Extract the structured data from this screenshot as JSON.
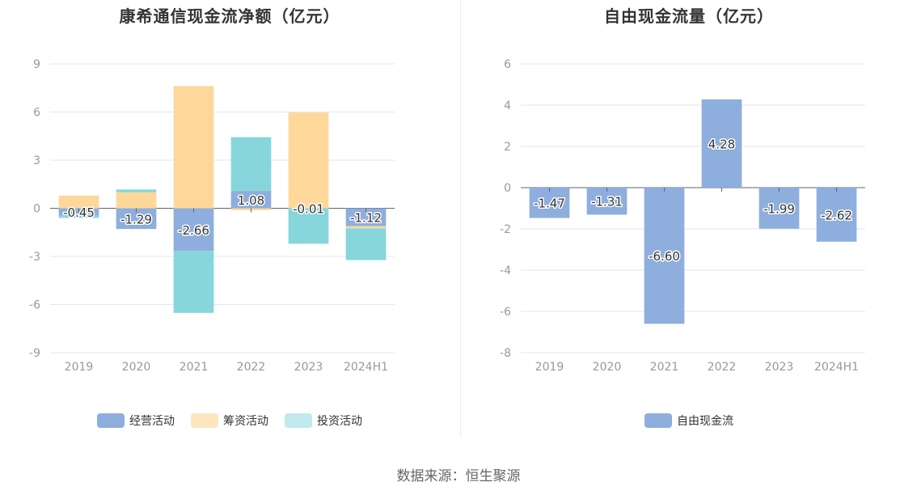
{
  "colors": {
    "operating": "#8eaedd",
    "financing": "#fdd89a",
    "investing": "#86d6dc",
    "free_cash_flow": "#8eaedd"
  },
  "legend_swatch_colors": {
    "operating": "#8eaedd",
    "financing": "#fde5c0",
    "investing": "#c2e9ec",
    "free_cash_flow": "#8eaedd"
  },
  "footer": "数据来源：恒生聚源",
  "chart_data": [
    {
      "type": "bar",
      "stacked": true,
      "title": "康希通信现金流净额（亿元）",
      "categories": [
        "2019",
        "2020",
        "2021",
        "2022",
        "2023",
        "2024H1"
      ],
      "ylim": [
        -9,
        9
      ],
      "yticks": [
        "9",
        "6",
        "3",
        "0",
        "-3",
        "-6",
        "-9"
      ],
      "ytick_values": [
        9,
        6,
        3,
        0,
        -3,
        -6,
        -9
      ],
      "legend_position": "bottom",
      "series": [
        {
          "key": "operating",
          "name": "经营活动",
          "values": [
            -0.45,
            -1.29,
            -2.66,
            1.08,
            -0.01,
            -1.12
          ],
          "labels": [
            "-0.45",
            "-1.29",
            "-2.66",
            "1.08",
            "-0.01",
            "-1.12"
          ]
        },
        {
          "key": "financing",
          "name": "筹资活动",
          "values": [
            0.79,
            1.0,
            7.62,
            -0.12,
            5.97,
            -0.13
          ]
        },
        {
          "key": "investing",
          "name": "投资活动",
          "values": [
            -0.15,
            0.17,
            -3.86,
            3.35,
            -2.2,
            -1.98
          ]
        }
      ]
    },
    {
      "type": "bar",
      "title": "自由现金流量（亿元）",
      "categories": [
        "2019",
        "2020",
        "2021",
        "2022",
        "2023",
        "2024H1"
      ],
      "ylim": [
        -8,
        6
      ],
      "yticks": [
        "6",
        "4",
        "2",
        "0",
        "-2",
        "-4",
        "-6",
        "-8"
      ],
      "ytick_values": [
        6,
        4,
        2,
        0,
        -2,
        -4,
        -6,
        -8
      ],
      "legend_position": "bottom",
      "series": [
        {
          "key": "free_cash_flow",
          "name": "自由现金流",
          "values": [
            -1.47,
            -1.31,
            -6.6,
            4.28,
            -1.99,
            -2.62
          ],
          "labels": [
            "-1.47",
            "-1.31",
            "-6.60",
            "4.28",
            "-1.99",
            "-2.62"
          ]
        }
      ]
    }
  ]
}
